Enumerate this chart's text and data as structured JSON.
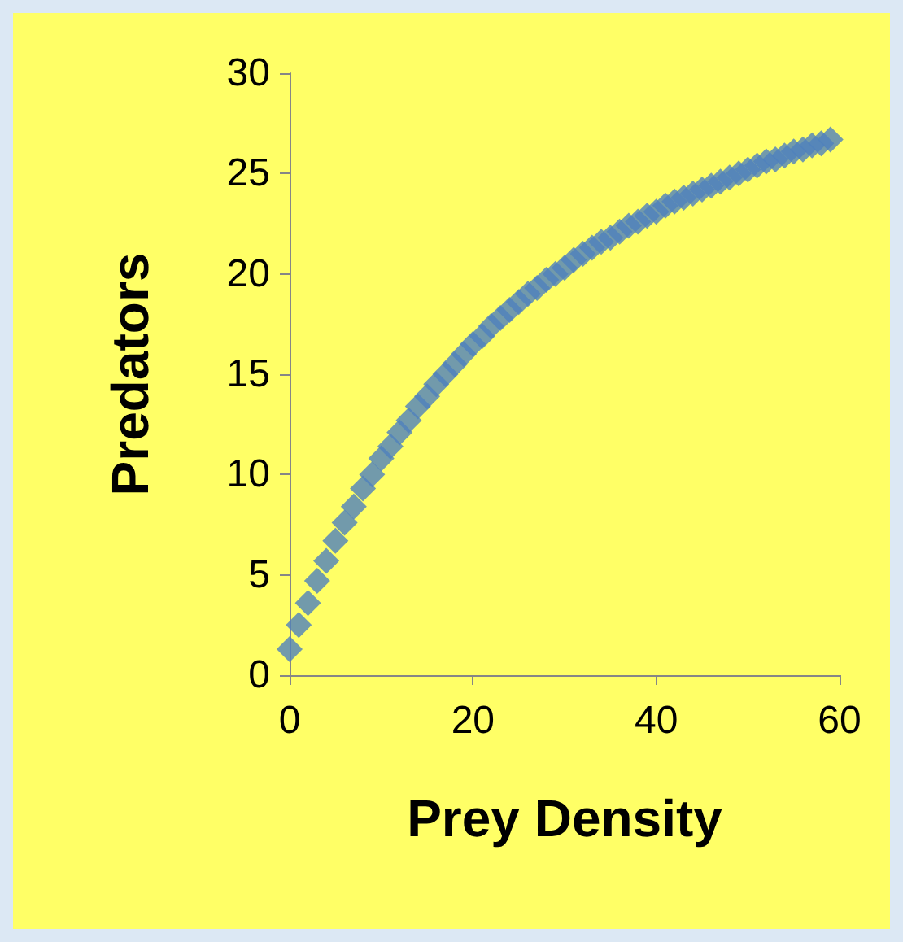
{
  "chart_data": {
    "type": "scatter",
    "xlabel": "Prey Density",
    "ylabel": "Predators",
    "x": [
      0,
      1,
      2,
      3,
      4,
      5,
      6,
      7,
      8,
      9,
      10,
      11,
      12,
      13,
      14,
      15,
      16,
      17,
      18,
      19,
      20,
      21,
      22,
      23,
      24,
      25,
      26,
      27,
      28,
      29,
      30,
      31,
      32,
      33,
      34,
      35,
      36,
      37,
      38,
      39,
      40,
      41,
      42,
      43,
      44,
      45,
      46,
      47,
      48,
      49,
      50,
      51,
      52,
      53,
      54,
      55,
      56,
      57,
      58,
      59
    ],
    "values": [
      1.3,
      2.5,
      3.6,
      4.7,
      5.7,
      6.7,
      7.6,
      8.4,
      9.3,
      10.0,
      10.8,
      11.4,
      12.1,
      12.7,
      13.4,
      13.9,
      14.5,
      15.0,
      15.5,
      16.0,
      16.5,
      16.9,
      17.4,
      17.8,
      18.2,
      18.6,
      19.0,
      19.3,
      19.7,
      20.0,
      20.3,
      20.7,
      21.0,
      21.3,
      21.6,
      21.8,
      22.1,
      22.4,
      22.6,
      22.9,
      23.1,
      23.4,
      23.6,
      23.8,
      24.0,
      24.2,
      24.4,
      24.6,
      24.8,
      25.0,
      25.2,
      25.4,
      25.6,
      25.7,
      25.9,
      26.1,
      26.2,
      26.4,
      26.5,
      26.7
    ],
    "color": "#4f81bd",
    "marker": "diamond",
    "xlim": [
      0,
      60
    ],
    "xticks": [
      0,
      20,
      40,
      60
    ],
    "ylim": [
      0,
      30
    ],
    "yticks": [
      0,
      5,
      10,
      15,
      20,
      25,
      30
    ]
  }
}
